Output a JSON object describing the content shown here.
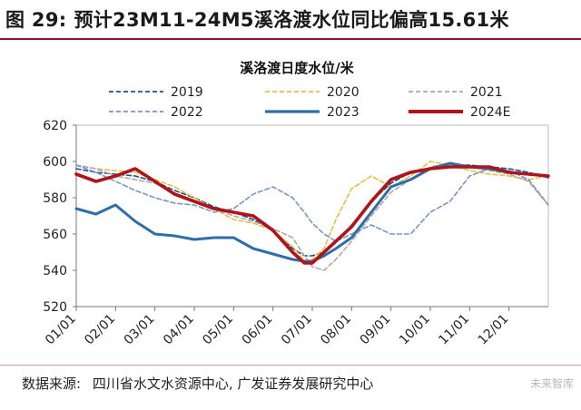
{
  "figure": {
    "label": "图 29:",
    "title": "预计23M11-24M5溪洛渡水位同比偏高15.61米"
  },
  "source": {
    "label": "数据来源:",
    "value": "四川省水文水资源中心, 广发证券发展研究中心"
  },
  "watermark": "未来智库",
  "chart_data": {
    "type": "line",
    "title": "溪洛渡日度水位/米",
    "xlabel": "",
    "ylabel": "",
    "ylim": [
      520,
      620
    ],
    "yticks": [
      520,
      540,
      560,
      580,
      600,
      620
    ],
    "xlim": [
      0,
      12
    ],
    "x_tick_labels": [
      "01/01",
      "02/01",
      "03/01",
      "04/01",
      "05/01",
      "06/01",
      "07/01",
      "08/01",
      "09/01",
      "10/01",
      "11/01",
      "12/01"
    ],
    "legend_position": "top",
    "grid": false,
    "series": [
      {
        "name": "2019",
        "color": "#1f4e9a",
        "style": "dashed",
        "x": [
          0,
          0.5,
          1,
          1.5,
          2,
          2.5,
          3,
          3.5,
          4,
          4.5,
          5,
          5.5,
          5.8,
          6,
          6.3,
          6.6,
          7,
          7.5,
          8,
          8.5,
          9,
          9.5,
          10,
          10.5,
          11,
          11.5,
          12
        ],
        "y": [
          596,
          594,
          593,
          592,
          589,
          584,
          580,
          575,
          572,
          568,
          562,
          552,
          548,
          548,
          550,
          556,
          565,
          578,
          588,
          594,
          596,
          598,
          598,
          597,
          596,
          594,
          591
        ]
      },
      {
        "name": "2020",
        "color": "#e7be45",
        "style": "dashed",
        "x": [
          0,
          0.5,
          1,
          1.5,
          2,
          2.5,
          3,
          3.5,
          4,
          4.5,
          5,
          5.5,
          5.8,
          6,
          6.3,
          6.6,
          7,
          7.5,
          8,
          8.5,
          9,
          9.5,
          10,
          10.5,
          11,
          11.5,
          12
        ],
        "y": [
          598,
          596,
          595,
          594,
          590,
          586,
          580,
          574,
          568,
          566,
          562,
          553,
          545,
          546,
          552,
          568,
          585,
          592,
          586,
          592,
          600,
          598,
          595,
          593,
          592,
          590,
          592
        ]
      },
      {
        "name": "2021",
        "color": "#aaaaaa",
        "style": "dashed",
        "x": [
          0,
          0.5,
          1,
          1.5,
          2,
          2.5,
          3,
          3.5,
          4,
          4.5,
          5,
          5.5,
          5.8,
          6,
          6.3,
          6.6,
          7,
          7.5,
          8,
          8.5,
          9,
          9.5,
          10,
          10.5,
          11,
          11.5,
          12
        ],
        "y": [
          598,
          596,
          592,
          590,
          588,
          582,
          578,
          574,
          570,
          567,
          563,
          558,
          548,
          542,
          540,
          546,
          556,
          570,
          583,
          590,
          597,
          599,
          597,
          595,
          593,
          589,
          576
        ]
      },
      {
        "name": "2022",
        "color": "#7a95c2",
        "style": "dashed",
        "x": [
          0,
          0.5,
          1,
          1.5,
          2,
          2.5,
          3,
          3.5,
          4,
          4.5,
          5,
          5.5,
          5.8,
          6,
          6.3,
          6.6,
          7,
          7.5,
          8,
          8.5,
          9,
          9.5,
          10,
          10.5,
          11,
          11.5,
          12
        ],
        "y": [
          598,
          594,
          589,
          584,
          580,
          577,
          576,
          572,
          574,
          582,
          586,
          580,
          572,
          566,
          560,
          556,
          560,
          565,
          560,
          560,
          572,
          578,
          592,
          596,
          595,
          590,
          576
        ]
      },
      {
        "name": "2023",
        "color": "#2e6ea8",
        "style": "solid",
        "x": [
          0,
          0.5,
          1,
          1.5,
          2,
          2.5,
          3,
          3.5,
          4,
          4.5,
          5,
          5.5,
          5.8,
          6,
          6.3,
          6.6,
          7,
          7.5,
          8,
          8.5,
          9,
          9.5,
          10,
          10.5,
          11,
          11.5,
          12
        ],
        "y": [
          574,
          571,
          576,
          567,
          560,
          559,
          557,
          558,
          558,
          552,
          549,
          546,
          545,
          545,
          548,
          552,
          558,
          572,
          586,
          590,
          596,
          599,
          597,
          596,
          594,
          593,
          592
        ]
      },
      {
        "name": "2024E",
        "color": "#b0141b",
        "style": "solid",
        "x": [
          0,
          0.5,
          1,
          1.5,
          2,
          2.5,
          3,
          3.5,
          4,
          4.5,
          5,
          5.5,
          5.8,
          6,
          6.3,
          6.6,
          7,
          7.5,
          8,
          8.5,
          9,
          9.5,
          10,
          10.5,
          11,
          11.5,
          12
        ],
        "y": [
          593,
          589,
          592,
          596,
          589,
          582,
          578,
          574,
          572,
          570,
          562,
          550,
          544,
          544,
          550,
          556,
          564,
          578,
          590,
          594,
          596,
          597,
          597,
          597,
          594,
          593,
          592
        ]
      }
    ]
  }
}
